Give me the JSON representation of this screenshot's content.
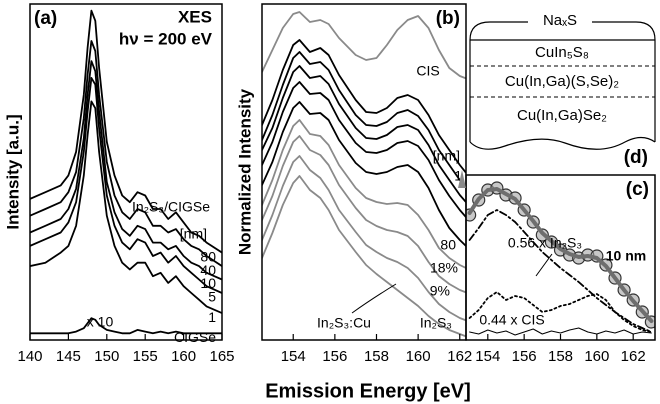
{
  "chart_data": [
    {
      "type": "line",
      "panel_label": "(a)",
      "y_label": "Intensity [a.u.]",
      "annotations": [
        "XES",
        "hν = 200 eV",
        "In₂S₃/CIGSe",
        "[nm]",
        "x 10"
      ],
      "x": [
        140,
        142,
        144,
        145,
        146,
        147,
        147.5,
        148,
        148.5,
        149,
        150,
        151,
        152,
        153,
        154,
        155,
        156,
        157,
        158,
        159,
        160,
        161,
        162,
        163,
        165
      ],
      "xlim": [
        140,
        165
      ],
      "xticks": [
        140,
        145,
        150,
        155,
        160,
        165
      ],
      "ylim": [
        0,
        100
      ],
      "series": [
        {
          "name": "80",
          "color": "#000000",
          "values": [
            42,
            44,
            46,
            49,
            56,
            73,
            87,
            98,
            95,
            81,
            59,
            49,
            43,
            41,
            44,
            43,
            39,
            39,
            36,
            38,
            35,
            32,
            31,
            29,
            26
          ]
        },
        {
          "name": "40",
          "color": "#000000",
          "values": [
            37,
            39,
            41,
            44,
            50,
            66,
            79,
            89,
            86,
            73,
            53,
            43,
            38,
            36,
            39,
            38,
            34,
            34,
            32,
            33,
            30,
            28,
            27,
            25,
            22
          ]
        },
        {
          "name": "10",
          "color": "#000000",
          "values": [
            32,
            34,
            36,
            39,
            45,
            60,
            73,
            83,
            80,
            68,
            47,
            38,
            33,
            31,
            34,
            33,
            29,
            29,
            27,
            28,
            25,
            23,
            22,
            20,
            18
          ]
        },
        {
          "name": "5",
          "color": "#000000",
          "values": [
            28,
            30,
            32,
            35,
            41,
            56,
            68,
            78,
            76,
            63,
            43,
            34,
            29,
            27,
            30,
            29,
            25,
            26,
            23,
            25,
            22,
            20,
            18,
            16,
            14
          ]
        },
        {
          "name": "1",
          "color": "#000000",
          "values": [
            22,
            23,
            26,
            28,
            34,
            49,
            61,
            71,
            69,
            56,
            37,
            28,
            23,
            21,
            23,
            23,
            19,
            20,
            17,
            19,
            16,
            14,
            12,
            10,
            8
          ]
        },
        {
          "name": "CIGSe",
          "color": "#000000",
          "values": [
            2,
            2,
            2,
            2,
            2.5,
            3.5,
            5,
            6.5,
            6,
            4.5,
            3,
            2.5,
            2,
            2,
            3,
            2.5,
            2,
            2.5,
            2,
            2.5,
            2,
            2,
            2,
            2,
            2
          ]
        }
      ]
    },
    {
      "type": "line",
      "panel_label": "(b)",
      "y_label": "Normalized Intensity",
      "x_label": "Emission Energy [eV]",
      "annotations": [
        "[nm]"
      ],
      "x": [
        152.5,
        153,
        153.5,
        154,
        154.3,
        154.8,
        155.3,
        155.7,
        156.2,
        157,
        157.5,
        158,
        158.5,
        159,
        159.5,
        160,
        160.5,
        161,
        161.5,
        162,
        162.5
      ],
      "xlim": [
        152.5,
        162.3
      ],
      "xticks": [
        154,
        156,
        158,
        160,
        162
      ],
      "ylim": [
        0,
        336
      ],
      "series": [
        {
          "name": "CIS",
          "color": "#8a8a8a",
          "values": [
            268,
            290,
            312,
            326,
            328,
            318,
            320,
            316,
            302,
            285,
            280,
            282,
            295,
            310,
            320,
            324,
            312,
            290,
            272,
            264,
            260
          ]
        },
        {
          "name": "1",
          "color": "#000000",
          "values": [
            215,
            240,
            270,
            295,
            300,
            288,
            292,
            285,
            265,
            240,
            228,
            227,
            232,
            242,
            245,
            240,
            225,
            205,
            190,
            175,
            162
          ]
        },
        {
          "color": "#000000",
          "values": [
            200,
            225,
            255,
            282,
            288,
            276,
            278,
            270,
            250,
            225,
            215,
            214,
            218,
            227,
            230,
            224,
            210,
            190,
            175,
            160,
            148
          ]
        },
        {
          "color": "#000000",
          "values": [
            190,
            212,
            242,
            268,
            274,
            262,
            264,
            256,
            236,
            212,
            202,
            201,
            205,
            213,
            215,
            210,
            195,
            175,
            160,
            145,
            133
          ]
        },
        {
          "color": "#000000",
          "values": [
            175,
            198,
            228,
            252,
            258,
            246,
            247,
            240,
            220,
            197,
            188,
            187,
            190,
            197,
            199,
            194,
            180,
            160,
            144,
            130,
            118
          ]
        },
        {
          "name": "80",
          "color": "#000000",
          "values": [
            155,
            178,
            208,
            232,
            238,
            226,
            227,
            220,
            200,
            177,
            168,
            166,
            168,
            173,
            175,
            168,
            152,
            130,
            112,
            100,
            90
          ]
        },
        {
          "name": "18%",
          "color": "#8a8a8a",
          "values": [
            135,
            160,
            190,
            214,
            220,
            206,
            204,
            195,
            175,
            152,
            142,
            138,
            136,
            137,
            135,
            125,
            110,
            92,
            82,
            75,
            70
          ]
        },
        {
          "name": "9%",
          "color": "#8a8a8a",
          "values": [
            120,
            144,
            174,
            198,
            204,
            190,
            185,
            175,
            155,
            132,
            120,
            114,
            110,
            108,
            104,
            94,
            78,
            64,
            56,
            50,
            46
          ]
        },
        {
          "name": "In₂S₃:Cu",
          "color": "#8a8a8a",
          "values": [
            100,
            125,
            154,
            178,
            184,
            170,
            162,
            150,
            130,
            108,
            95,
            88,
            82,
            78,
            72,
            62,
            48,
            36,
            28,
            22,
            18
          ]
        },
        {
          "name": "In₂S₃",
          "color": "#8a8a8a",
          "values": [
            82,
            107,
            135,
            157,
            164,
            150,
            142,
            130,
            110,
            88,
            75,
            66,
            58,
            50,
            42,
            34,
            24,
            16,
            10,
            6,
            2
          ]
        }
      ]
    },
    {
      "type": "line",
      "panel_label": "(c)",
      "x": [
        153,
        153.5,
        154,
        154.5,
        155,
        155.5,
        156,
        156.5,
        157,
        157.5,
        158,
        158.5,
        159,
        159.5,
        160,
        160.5,
        161,
        161.5,
        162,
        162.5,
        163
      ],
      "xlim": [
        152.8,
        163.2
      ],
      "xticks": [
        154,
        156,
        158,
        160,
        162
      ],
      "ylim": [
        0,
        165
      ],
      "series": [
        {
          "name": "10 nm",
          "color": "#9a9a9a",
          "marker": "circle",
          "values": [
            125,
            140,
            150,
            152,
            145,
            142,
            130,
            118,
            105,
            98,
            90,
            85,
            82,
            85,
            84,
            75,
            62,
            50,
            40,
            28,
            18
          ]
        },
        {
          "color": "#6e6e6e",
          "width": 4,
          "values": [
            127,
            141,
            150,
            151,
            146,
            141,
            130,
            119,
            107,
            99,
            91,
            86,
            83,
            84,
            82,
            74,
            62,
            50,
            39,
            29,
            19
          ]
        },
        {
          "name": "0.56 x In₂S₃",
          "color": "#000000",
          "dash": "7 3 2 3",
          "values": [
            100,
            112,
            125,
            130,
            125,
            118,
            108,
            98,
            88,
            80,
            72,
            65,
            58,
            50,
            42,
            35,
            28,
            22,
            16,
            12,
            8
          ]
        },
        {
          "name": "0.44 x CIS",
          "color": "#000000",
          "dash": "2 3",
          "values": [
            22,
            30,
            42,
            48,
            40,
            44,
            42,
            35,
            28,
            30,
            34,
            36,
            40,
            44,
            46,
            40,
            28,
            20,
            14,
            10,
            8
          ]
        },
        {
          "color": "#000000",
          "width": 1,
          "values": [
            8,
            6,
            10,
            7,
            9,
            5,
            8,
            11,
            6,
            9,
            7,
            10,
            12,
            8,
            6,
            9,
            7,
            10,
            6,
            8,
            7
          ]
        }
      ]
    }
  ],
  "diagram": {
    "panel_label": "(d)",
    "layers": [
      "NaₓS",
      "CuIn₅S₈",
      "Cu(In,Ga)(S,Se)₂",
      "Cu(In,Ga)Se₂"
    ]
  }
}
